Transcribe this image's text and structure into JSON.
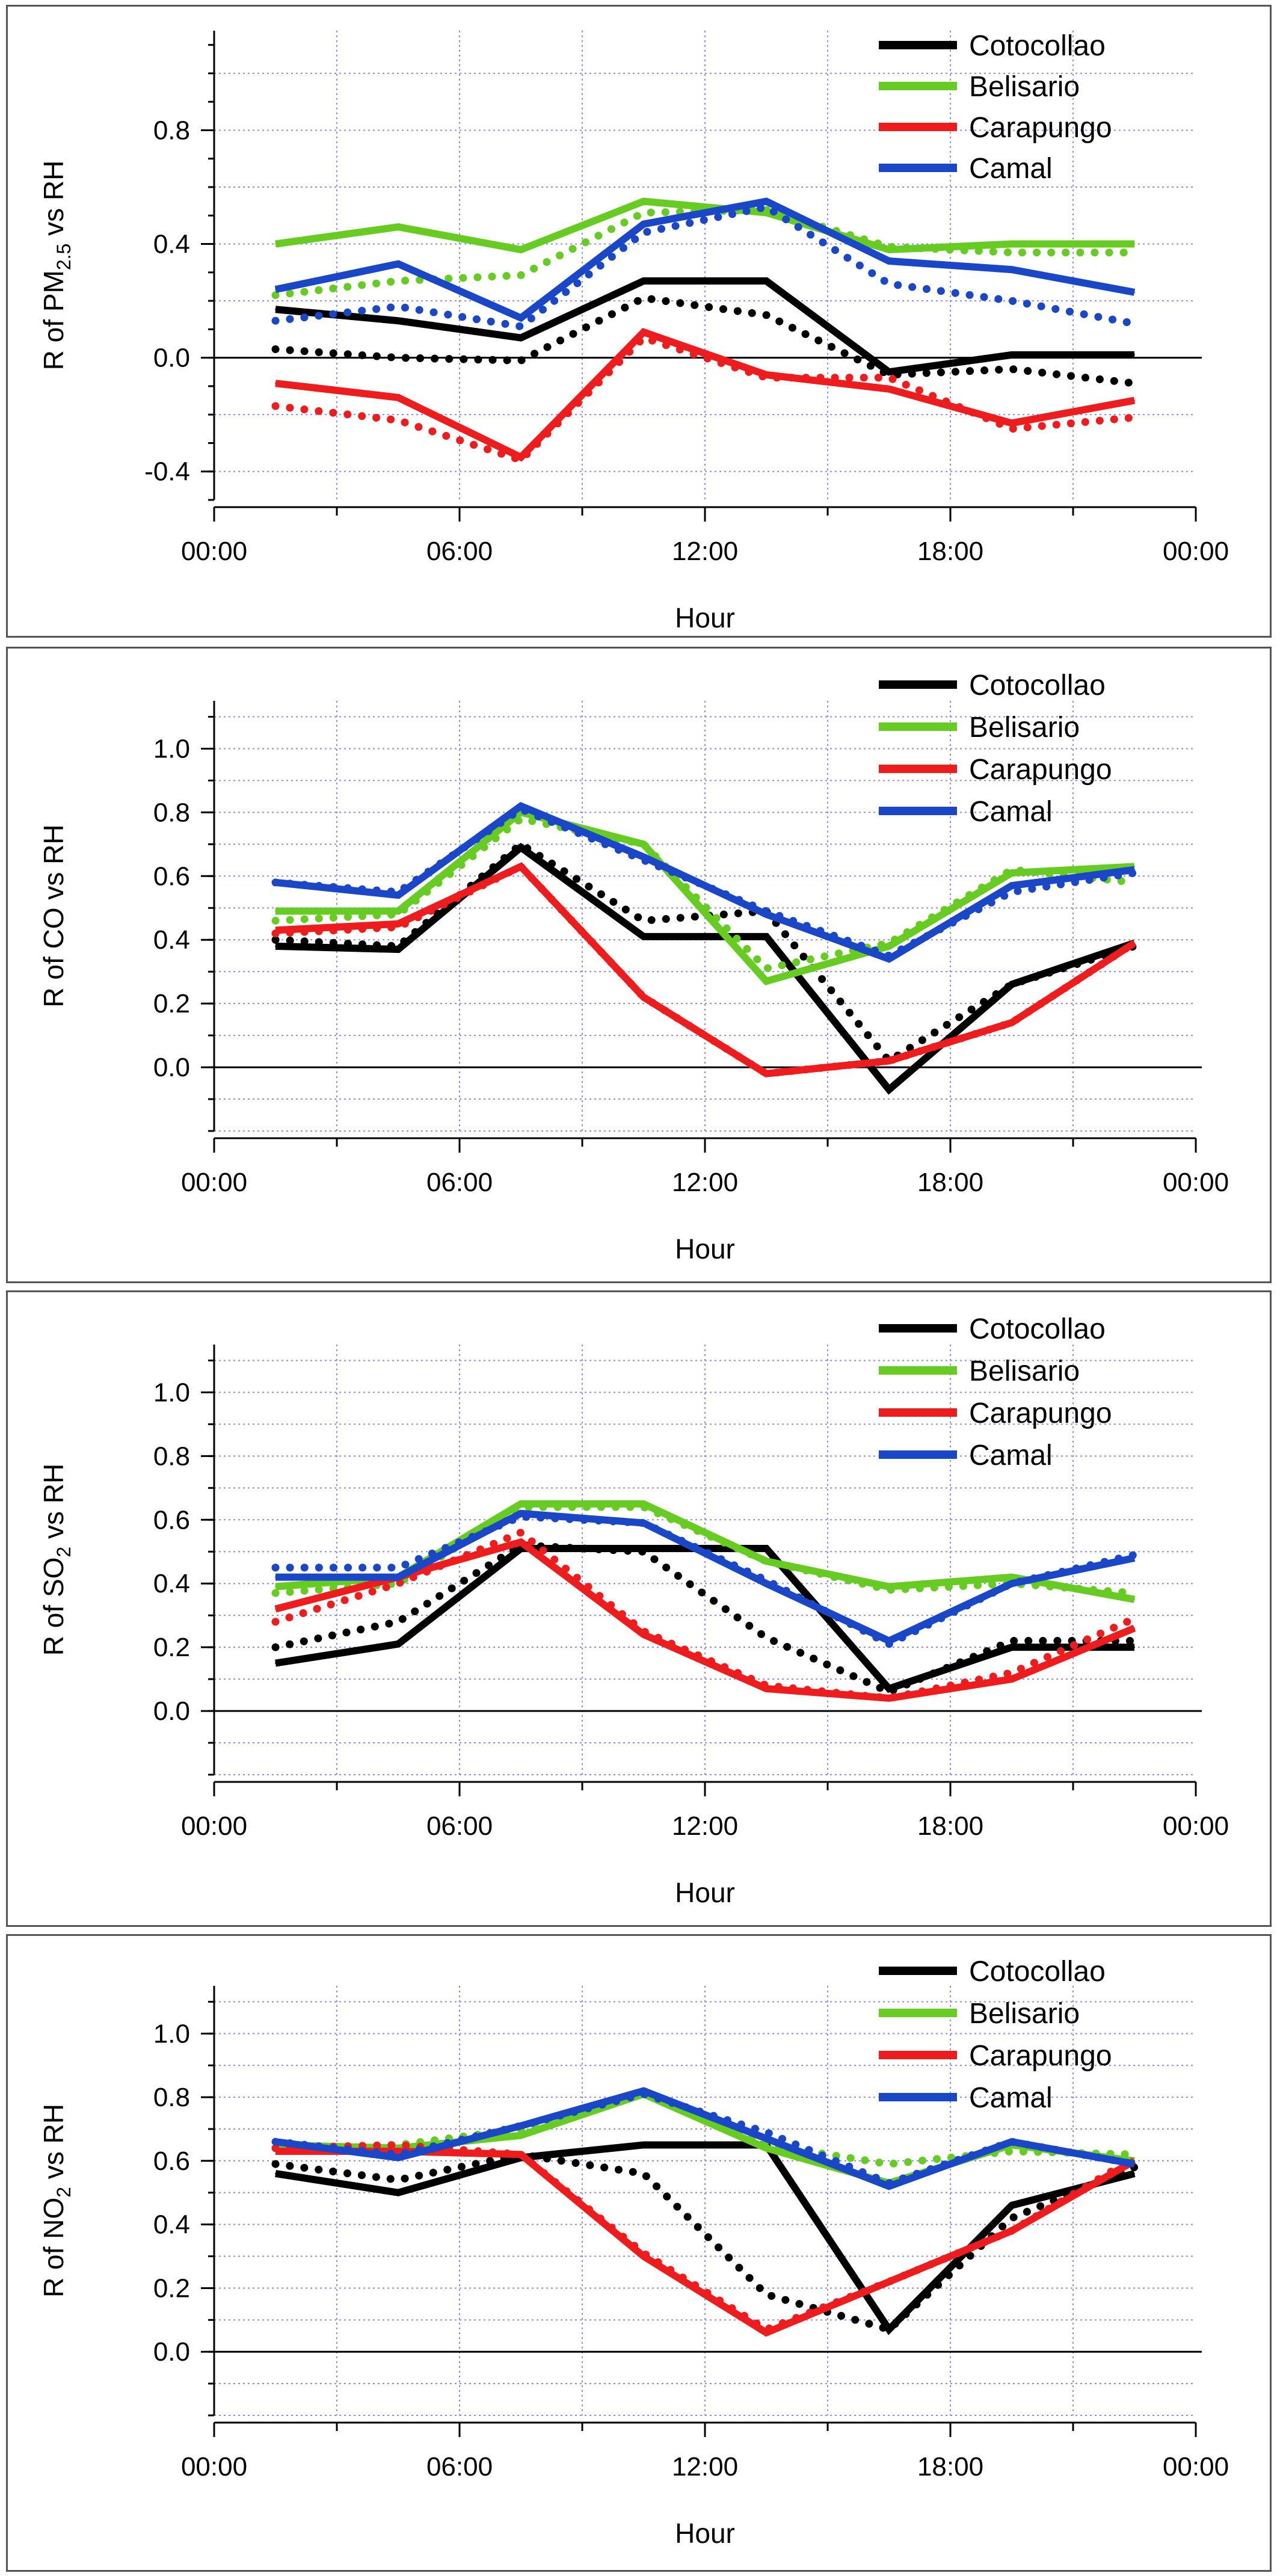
{
  "chart_data": [
    {
      "type": "line",
      "ylabel": "R of PM2.5 vs RH",
      "ylabel_base": "R of PM",
      "ylabel_sub": "2.5",
      "ylabel_tail": " vs RH",
      "xlabel": "Hour",
      "xticks": [
        "00:00",
        "06:00",
        "12:00",
        "18:00",
        "00:00"
      ],
      "xlim": [
        0,
        24
      ],
      "ylim": [
        -0.5,
        1.15
      ],
      "yticks": [
        "-0.4",
        "0.0",
        "0.4",
        "0.8"
      ],
      "ytick_values": [
        -0.4,
        0.0,
        0.4,
        0.8
      ],
      "x": [
        1.5,
        4.5,
        7.5,
        10.5,
        13.5,
        16.5,
        19.5,
        22.5
      ],
      "legend_position": "top-right",
      "series": [
        {
          "name": "Cotocollao",
          "color": "#000000",
          "values": [
            0.17,
            0.13,
            0.07,
            0.27,
            0.27,
            -0.05,
            0.01,
            0.01
          ],
          "dotted": [
            0.03,
            0.0,
            -0.01,
            0.21,
            0.15,
            -0.06,
            -0.04,
            -0.09
          ]
        },
        {
          "name": "Belisario",
          "color": "#66cc22",
          "values": [
            0.4,
            0.46,
            0.38,
            0.55,
            0.51,
            0.38,
            0.4,
            0.4
          ],
          "dotted": [
            0.22,
            0.27,
            0.29,
            0.51,
            0.52,
            0.39,
            0.37,
            0.37
          ]
        },
        {
          "name": "Carapungo",
          "color": "#ee1c1c",
          "values": [
            -0.09,
            -0.14,
            -0.35,
            0.09,
            -0.06,
            -0.11,
            -0.23,
            -0.15
          ],
          "dotted": [
            -0.17,
            -0.22,
            -0.36,
            0.07,
            -0.07,
            -0.07,
            -0.25,
            -0.21
          ]
        },
        {
          "name": "Camal",
          "color": "#1a46c8",
          "values": [
            0.24,
            0.33,
            0.14,
            0.47,
            0.55,
            0.34,
            0.31,
            0.23
          ],
          "dotted": [
            0.13,
            0.18,
            0.11,
            0.44,
            0.53,
            0.26,
            0.2,
            0.12
          ]
        }
      ]
    },
    {
      "type": "line",
      "ylabel": "R of CO vs RH",
      "ylabel_base": "R of CO vs RH",
      "ylabel_sub": "",
      "ylabel_tail": "",
      "xlabel": "Hour",
      "xticks": [
        "00:00",
        "06:00",
        "12:00",
        "18:00",
        "00:00"
      ],
      "xlim": [
        0,
        24
      ],
      "ylim": [
        -0.2,
        1.15
      ],
      "yticks": [
        "0.0",
        "0.2",
        "0.4",
        "0.6",
        "0.8",
        "1.0"
      ],
      "ytick_values": [
        0.0,
        0.2,
        0.4,
        0.6,
        0.8,
        1.0
      ],
      "x": [
        1.5,
        4.5,
        7.5,
        10.5,
        13.5,
        16.5,
        19.5,
        22.5
      ],
      "legend_position": "top-right",
      "series": [
        {
          "name": "Cotocollao",
          "color": "#000000",
          "values": [
            0.38,
            0.37,
            0.69,
            0.41,
            0.41,
            -0.07,
            0.26,
            0.39
          ],
          "dotted": [
            0.4,
            0.38,
            0.7,
            0.46,
            0.49,
            0.02,
            0.26,
            0.38
          ]
        },
        {
          "name": "Belisario",
          "color": "#66cc22",
          "values": [
            0.49,
            0.49,
            0.8,
            0.7,
            0.27,
            0.38,
            0.61,
            0.63
          ],
          "dotted": [
            0.46,
            0.48,
            0.78,
            0.7,
            0.31,
            0.39,
            0.62,
            0.58
          ]
        },
        {
          "name": "Carapungo",
          "color": "#ee1c1c",
          "values": [
            0.43,
            0.45,
            0.63,
            0.22,
            -0.02,
            0.02,
            0.14,
            0.39
          ],
          "dotted": [
            0.42,
            0.44,
            0.63,
            0.22,
            -0.02,
            0.02,
            0.14,
            0.39
          ]
        },
        {
          "name": "Camal",
          "color": "#1a46c8",
          "values": [
            0.58,
            0.54,
            0.82,
            0.66,
            0.48,
            0.34,
            0.57,
            0.62
          ],
          "dotted": [
            0.58,
            0.55,
            0.81,
            0.65,
            0.49,
            0.35,
            0.55,
            0.61
          ]
        }
      ]
    },
    {
      "type": "line",
      "ylabel": "R of SO2 vs RH",
      "ylabel_base": "R of SO",
      "ylabel_sub": "2",
      "ylabel_tail": " vs RH",
      "xlabel": "Hour",
      "xticks": [
        "00:00",
        "06:00",
        "12:00",
        "18:00",
        "00:00"
      ],
      "xlim": [
        0,
        24
      ],
      "ylim": [
        -0.2,
        1.15
      ],
      "yticks": [
        "0.0",
        "0.2",
        "0.4",
        "0.6",
        "0.8",
        "1.0"
      ],
      "ytick_values": [
        0.0,
        0.2,
        0.4,
        0.6,
        0.8,
        1.0
      ],
      "x": [
        1.5,
        4.5,
        7.5,
        10.5,
        13.5,
        16.5,
        19.5,
        22.5
      ],
      "legend_position": "top-right",
      "series": [
        {
          "name": "Cotocollao",
          "color": "#000000",
          "values": [
            0.15,
            0.21,
            0.51,
            0.51,
            0.51,
            0.07,
            0.2,
            0.2
          ],
          "dotted": [
            0.2,
            0.28,
            0.52,
            0.5,
            0.23,
            0.06,
            0.22,
            0.22
          ]
        },
        {
          "name": "Belisario",
          "color": "#66cc22",
          "values": [
            0.39,
            0.42,
            0.65,
            0.65,
            0.47,
            0.39,
            0.42,
            0.35
          ],
          "dotted": [
            0.37,
            0.4,
            0.64,
            0.64,
            0.47,
            0.38,
            0.4,
            0.37
          ]
        },
        {
          "name": "Carapungo",
          "color": "#ee1c1c",
          "values": [
            0.32,
            0.42,
            0.53,
            0.24,
            0.07,
            0.04,
            0.1,
            0.26
          ],
          "dotted": [
            0.28,
            0.4,
            0.56,
            0.25,
            0.08,
            0.04,
            0.12,
            0.29
          ]
        },
        {
          "name": "Camal",
          "color": "#1a46c8",
          "values": [
            0.42,
            0.42,
            0.62,
            0.59,
            0.4,
            0.22,
            0.4,
            0.48
          ],
          "dotted": [
            0.45,
            0.45,
            0.61,
            0.59,
            0.41,
            0.21,
            0.4,
            0.49
          ]
        }
      ]
    },
    {
      "type": "line",
      "ylabel": "R of NO2 vs RH",
      "ylabel_base": "R of NO",
      "ylabel_sub": "2",
      "ylabel_tail": " vs RH",
      "xlabel": "Hour",
      "xticks": [
        "00:00",
        "06:00",
        "12:00",
        "18:00",
        "00:00"
      ],
      "xlim": [
        0,
        24
      ],
      "ylim": [
        -0.2,
        1.15
      ],
      "yticks": [
        "0.0",
        "0.2",
        "0.4",
        "0.6",
        "0.8",
        "1.0"
      ],
      "ytick_values": [
        0.0,
        0.2,
        0.4,
        0.6,
        0.8,
        1.0
      ],
      "x": [
        1.5,
        4.5,
        7.5,
        10.5,
        13.5,
        16.5,
        19.5,
        22.5
      ],
      "legend_position": "top-right",
      "series": [
        {
          "name": "Cotocollao",
          "color": "#000000",
          "values": [
            0.56,
            0.5,
            0.61,
            0.65,
            0.65,
            0.07,
            0.46,
            0.56
          ],
          "dotted": [
            0.59,
            0.54,
            0.62,
            0.56,
            0.18,
            0.07,
            0.42,
            0.58
          ]
        },
        {
          "name": "Belisario",
          "color": "#66cc22",
          "values": [
            0.65,
            0.64,
            0.68,
            0.81,
            0.64,
            0.53,
            0.65,
            0.6
          ],
          "dotted": [
            0.64,
            0.65,
            0.7,
            0.82,
            0.65,
            0.59,
            0.63,
            0.62
          ]
        },
        {
          "name": "Carapungo",
          "color": "#ee1c1c",
          "values": [
            0.63,
            0.63,
            0.62,
            0.3,
            0.06,
            0.22,
            0.38,
            0.6
          ],
          "dotted": [
            0.64,
            0.65,
            0.62,
            0.31,
            0.07,
            0.22,
            0.38,
            0.61
          ]
        },
        {
          "name": "Camal",
          "color": "#1a46c8",
          "values": [
            0.66,
            0.61,
            0.71,
            0.82,
            0.67,
            0.52,
            0.66,
            0.59
          ],
          "dotted": [
            0.66,
            0.62,
            0.71,
            0.81,
            0.69,
            0.53,
            0.66,
            0.59
          ]
        }
      ]
    }
  ]
}
